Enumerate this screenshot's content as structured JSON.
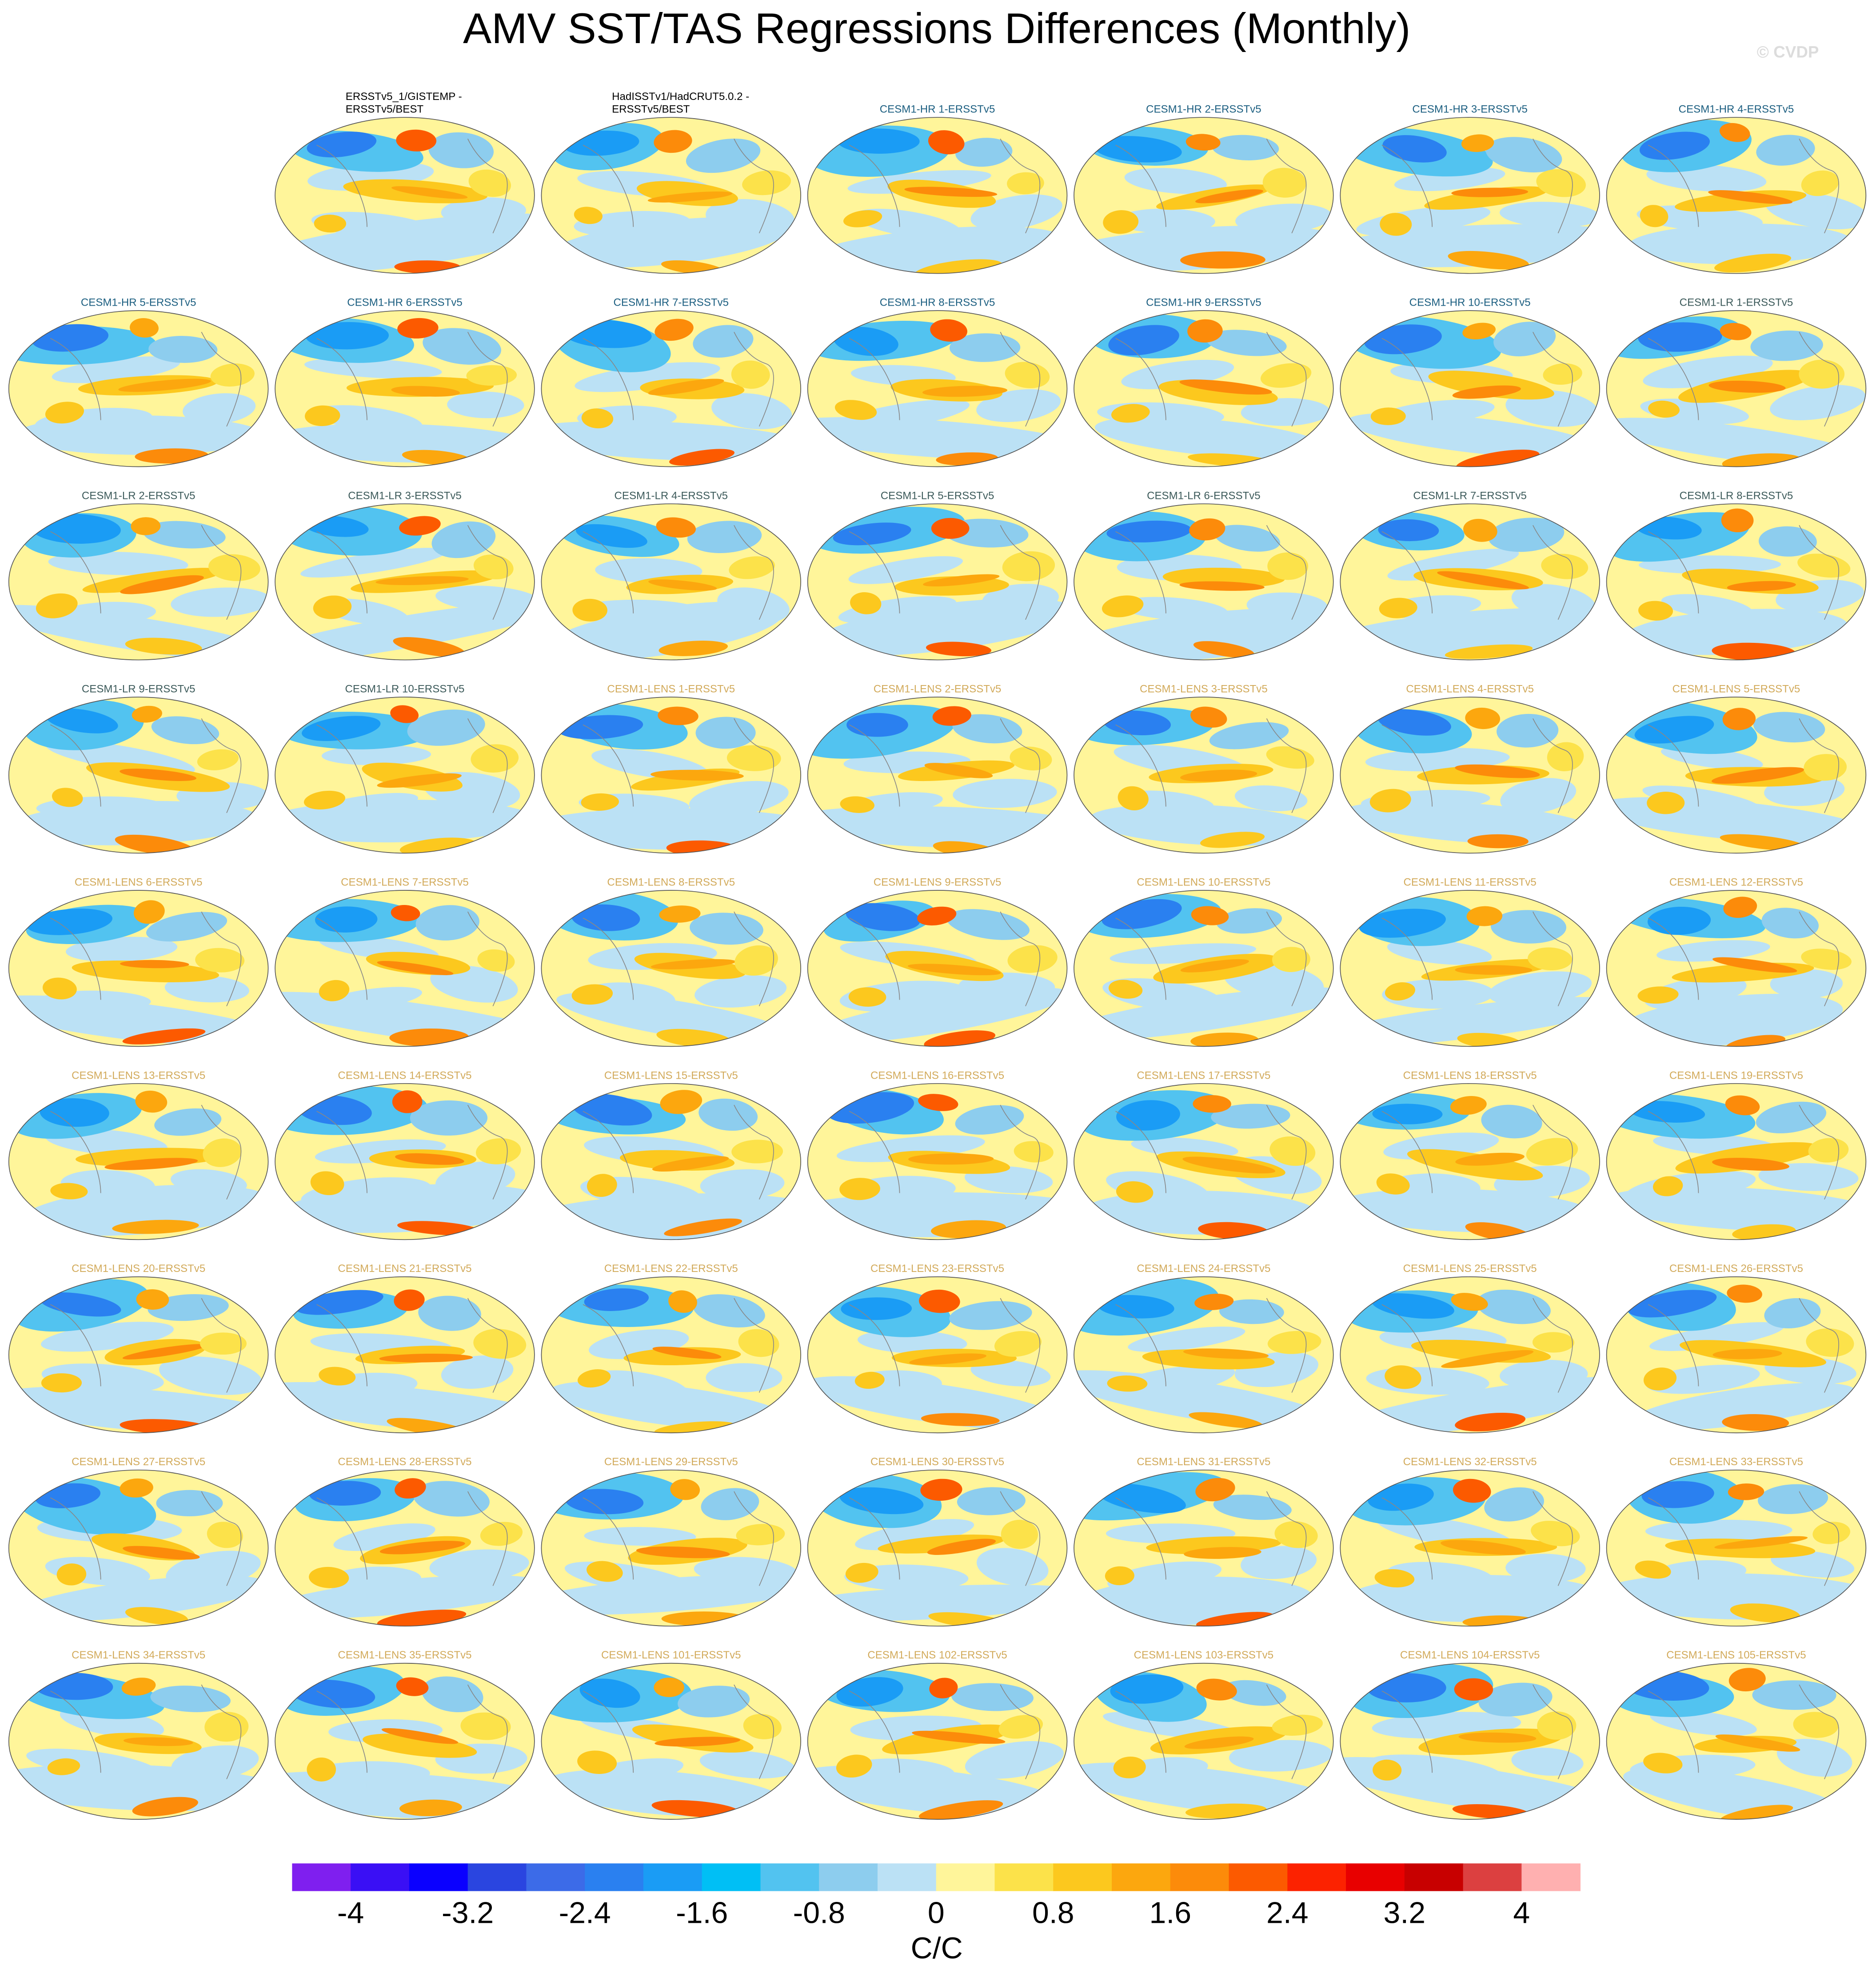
{
  "chart_data": {
    "type": "map-grid",
    "title": "AMV SST/TAS Regressions Differences (Monthly)",
    "watermark": "© CVDP",
    "columns": 7,
    "panels": [
      {
        "title": [
          "ERSSTv5_1/GISTEMP -",
          "ERSSTv5/BEST"
        ],
        "title_color": "#000000"
      },
      {
        "title": [
          "HadISSTv1/HadCRUT5.0.2 -",
          "ERSSTv5/BEST"
        ],
        "title_color": "#000000"
      },
      {
        "title": [
          "CESM1-HR 1-ERSSTv5"
        ],
        "title_color": "#1b5e80"
      },
      {
        "title": [
          "CESM1-HR 2-ERSSTv5"
        ],
        "title_color": "#1b5e80"
      },
      {
        "title": [
          "CESM1-HR 3-ERSSTv5"
        ],
        "title_color": "#1b5e80"
      },
      {
        "title": [
          "CESM1-HR 4-ERSSTv5"
        ],
        "title_color": "#1b5e80"
      },
      {
        "title": [
          "CESM1-HR 5-ERSSTv5"
        ],
        "title_color": "#1b5e80"
      },
      {
        "title": [
          "CESM1-HR 6-ERSSTv5"
        ],
        "title_color": "#1b5e80"
      },
      {
        "title": [
          "CESM1-HR 7-ERSSTv5"
        ],
        "title_color": "#1b5e80"
      },
      {
        "title": [
          "CESM1-HR 8-ERSSTv5"
        ],
        "title_color": "#1b5e80"
      },
      {
        "title": [
          "CESM1-HR 9-ERSSTv5"
        ],
        "title_color": "#1b5e80"
      },
      {
        "title": [
          "CESM1-HR 10-ERSSTv5"
        ],
        "title_color": "#1b5e80"
      },
      {
        "title": [
          "CESM1-LR 1-ERSSTv5"
        ],
        "title_color": "#3c5a5a"
      },
      {
        "title": [
          "CESM1-LR 2-ERSSTv5"
        ],
        "title_color": "#3c5a5a"
      },
      {
        "title": [
          "CESM1-LR 3-ERSSTv5"
        ],
        "title_color": "#3c5a5a"
      },
      {
        "title": [
          "CESM1-LR 4-ERSSTv5"
        ],
        "title_color": "#3c5a5a"
      },
      {
        "title": [
          "CESM1-LR 5-ERSSTv5"
        ],
        "title_color": "#3c5a5a"
      },
      {
        "title": [
          "CESM1-LR 6-ERSSTv5"
        ],
        "title_color": "#3c5a5a"
      },
      {
        "title": [
          "CESM1-LR 7-ERSSTv5"
        ],
        "title_color": "#3c5a5a"
      },
      {
        "title": [
          "CESM1-LR 8-ERSSTv5"
        ],
        "title_color": "#3c5a5a"
      },
      {
        "title": [
          "CESM1-LR 9-ERSSTv5"
        ],
        "title_color": "#3c5a5a"
      },
      {
        "title": [
          "CESM1-LR 10-ERSSTv5"
        ],
        "title_color": "#3c5a5a"
      },
      {
        "title": [
          "CESM1-LENS 1-ERSSTv5"
        ],
        "title_color": "#d2aa5a"
      },
      {
        "title": [
          "CESM1-LENS 2-ERSSTv5"
        ],
        "title_color": "#d2aa5a"
      },
      {
        "title": [
          "CESM1-LENS 3-ERSSTv5"
        ],
        "title_color": "#d2aa5a"
      },
      {
        "title": [
          "CESM1-LENS 4-ERSSTv5"
        ],
        "title_color": "#d2aa5a"
      },
      {
        "title": [
          "CESM1-LENS 5-ERSSTv5"
        ],
        "title_color": "#d2aa5a"
      },
      {
        "title": [
          "CESM1-LENS 6-ERSSTv5"
        ],
        "title_color": "#d2aa5a"
      },
      {
        "title": [
          "CESM1-LENS 7-ERSSTv5"
        ],
        "title_color": "#d2aa5a"
      },
      {
        "title": [
          "CESM1-LENS 8-ERSSTv5"
        ],
        "title_color": "#d2aa5a"
      },
      {
        "title": [
          "CESM1-LENS 9-ERSSTv5"
        ],
        "title_color": "#d2aa5a"
      },
      {
        "title": [
          "CESM1-LENS 10-ERSSTv5"
        ],
        "title_color": "#d2aa5a"
      },
      {
        "title": [
          "CESM1-LENS 11-ERSSTv5"
        ],
        "title_color": "#d2aa5a"
      },
      {
        "title": [
          "CESM1-LENS 12-ERSSTv5"
        ],
        "title_color": "#d2aa5a"
      },
      {
        "title": [
          "CESM1-LENS 13-ERSSTv5"
        ],
        "title_color": "#d2aa5a"
      },
      {
        "title": [
          "CESM1-LENS 14-ERSSTv5"
        ],
        "title_color": "#d2aa5a"
      },
      {
        "title": [
          "CESM1-LENS 15-ERSSTv5"
        ],
        "title_color": "#d2aa5a"
      },
      {
        "title": [
          "CESM1-LENS 16-ERSSTv5"
        ],
        "title_color": "#d2aa5a"
      },
      {
        "title": [
          "CESM1-LENS 17-ERSSTv5"
        ],
        "title_color": "#d2aa5a"
      },
      {
        "title": [
          "CESM1-LENS 18-ERSSTv5"
        ],
        "title_color": "#d2aa5a"
      },
      {
        "title": [
          "CESM1-LENS 19-ERSSTv5"
        ],
        "title_color": "#d2aa5a"
      },
      {
        "title": [
          "CESM1-LENS 20-ERSSTv5"
        ],
        "title_color": "#d2aa5a"
      },
      {
        "title": [
          "CESM1-LENS 21-ERSSTv5"
        ],
        "title_color": "#d2aa5a"
      },
      {
        "title": [
          "CESM1-LENS 22-ERSSTv5"
        ],
        "title_color": "#d2aa5a"
      },
      {
        "title": [
          "CESM1-LENS 23-ERSSTv5"
        ],
        "title_color": "#d2aa5a"
      },
      {
        "title": [
          "CESM1-LENS 24-ERSSTv5"
        ],
        "title_color": "#d2aa5a"
      },
      {
        "title": [
          "CESM1-LENS 25-ERSSTv5"
        ],
        "title_color": "#d2aa5a"
      },
      {
        "title": [
          "CESM1-LENS 26-ERSSTv5"
        ],
        "title_color": "#d2aa5a"
      },
      {
        "title": [
          "CESM1-LENS 27-ERSSTv5"
        ],
        "title_color": "#d2aa5a"
      },
      {
        "title": [
          "CESM1-LENS 28-ERSSTv5"
        ],
        "title_color": "#d2aa5a"
      },
      {
        "title": [
          "CESM1-LENS 29-ERSSTv5"
        ],
        "title_color": "#d2aa5a"
      },
      {
        "title": [
          "CESM1-LENS 30-ERSSTv5"
        ],
        "title_color": "#d2aa5a"
      },
      {
        "title": [
          "CESM1-LENS 31-ERSSTv5"
        ],
        "title_color": "#d2aa5a"
      },
      {
        "title": [
          "CESM1-LENS 32-ERSSTv5"
        ],
        "title_color": "#d2aa5a"
      },
      {
        "title": [
          "CESM1-LENS 33-ERSSTv5"
        ],
        "title_color": "#d2aa5a"
      },
      {
        "title": [
          "CESM1-LENS 34-ERSSTv5"
        ],
        "title_color": "#d2aa5a"
      },
      {
        "title": [
          "CESM1-LENS 35-ERSSTv5"
        ],
        "title_color": "#d2aa5a"
      },
      {
        "title": [
          "CESM1-LENS 101-ERSSTv5"
        ],
        "title_color": "#d2aa5a"
      },
      {
        "title": [
          "CESM1-LENS 102-ERSSTv5"
        ],
        "title_color": "#d2aa5a"
      },
      {
        "title": [
          "CESM1-LENS 103-ERSSTv5"
        ],
        "title_color": "#d2aa5a"
      },
      {
        "title": [
          "CESM1-LENS 104-ERSSTv5"
        ],
        "title_color": "#d2aa5a"
      },
      {
        "title": [
          "CESM1-LENS 105-ERSSTv5"
        ],
        "title_color": "#d2aa5a"
      }
    ],
    "colorbar": {
      "label": "C/C",
      "levels": [
        -4,
        -3.6,
        -3.2,
        -2.8,
        -2.4,
        -2,
        -1.6,
        -1.2,
        -0.8,
        -0.4,
        0,
        0.4,
        0.8,
        1.2,
        1.6,
        2,
        2.4,
        2.8,
        3.2,
        3.6,
        4
      ],
      "ticks": [
        -4,
        -3.2,
        -2.4,
        -1.6,
        -0.8,
        0,
        0.8,
        1.6,
        2.4,
        3.2,
        4
      ],
      "colors": [
        "#7f1fef",
        "#3a0ff5",
        "#0a00ff",
        "#2a45e0",
        "#3c6be8",
        "#2a80f0",
        "#1a9cf5",
        "#00bff5",
        "#52c3f0",
        "#8dcdee",
        "#bbe1f5",
        "#fff59a",
        "#fce24a",
        "#fcc81e",
        "#fca70e",
        "#fc8b0a",
        "#fc5a00",
        "#fc2200",
        "#e80000",
        "#c80000",
        "#dc4040",
        "#ffb0b0"
      ]
    }
  }
}
